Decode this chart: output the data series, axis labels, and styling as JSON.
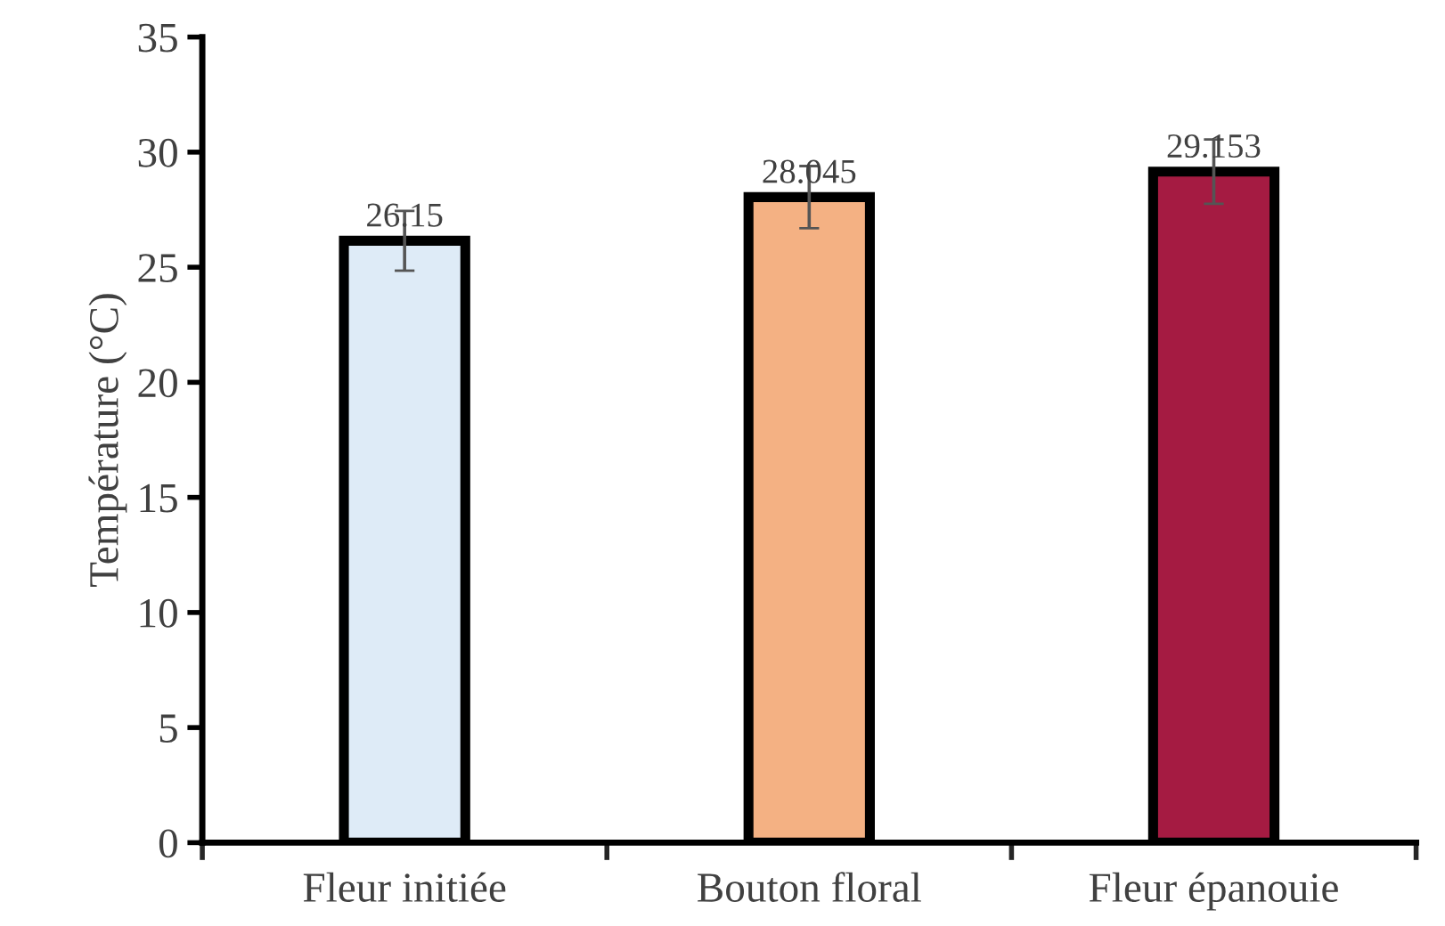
{
  "chart_data": {
    "type": "bar",
    "ylabel": "Température (°C)",
    "categories": [
      "Fleur initiée",
      "Bouton floral",
      "Fleur épanouie"
    ],
    "values": [
      26.15,
      28.045,
      29.153
    ],
    "colors": [
      "#deebf7",
      "#f4b183",
      "#a51b42"
    ],
    "errors": [
      1.3,
      1.35,
      1.4
    ],
    "data_labels": true,
    "ylim": [
      0,
      35
    ],
    "yticks": [
      0,
      5,
      10,
      15,
      20,
      25,
      30,
      35
    ],
    "grid": false
  }
}
